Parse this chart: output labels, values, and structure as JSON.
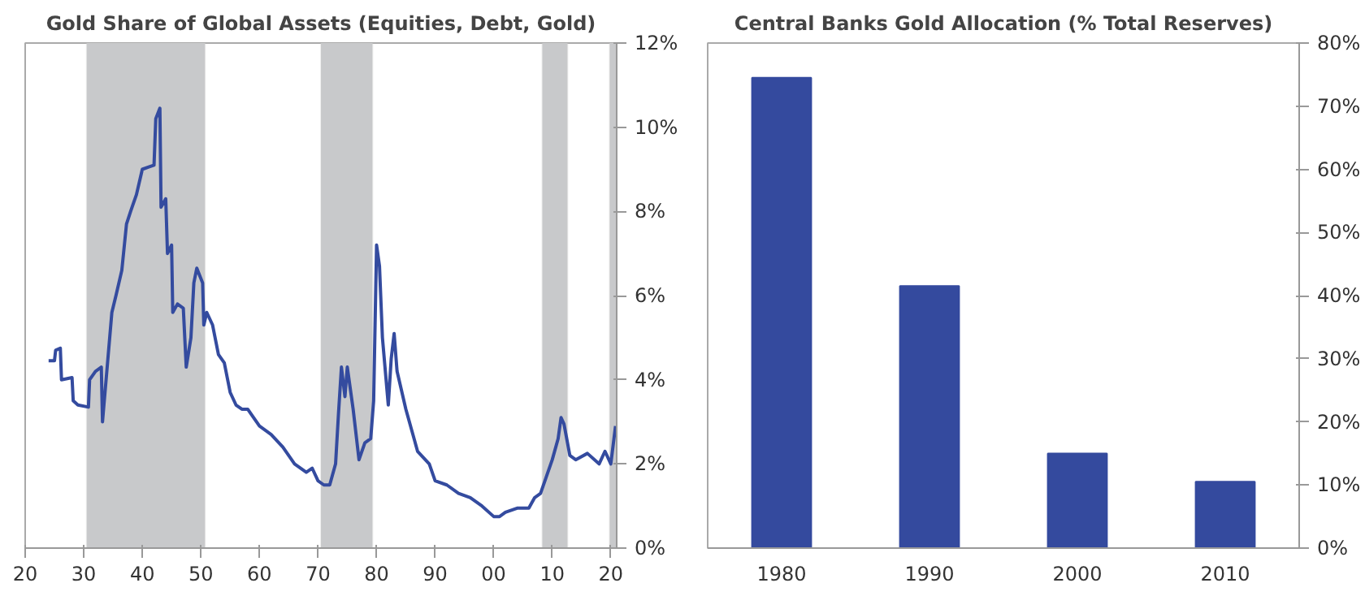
{
  "chart_data": [
    {
      "type": "line",
      "title": "Gold Share of Global Assets (Equities, Debt, Gold)",
      "x": [
        1924,
        1925,
        1925.2,
        1926,
        1926.2,
        1928,
        1928.2,
        1929,
        1930.8,
        1931,
        1932,
        1933,
        1933.2,
        1934,
        1934.8,
        1935.5,
        1936.5,
        1937.3,
        1938,
        1939,
        1940,
        1941,
        1942,
        1942.3,
        1943,
        1943.2,
        1944,
        1944.3,
        1945,
        1945.2,
        1946,
        1947,
        1947.5,
        1948.3,
        1948.8,
        1949.3,
        1950.3,
        1950.5,
        1951,
        1952,
        1953,
        1954,
        1955,
        1956,
        1957,
        1958,
        1960,
        1962,
        1964,
        1966,
        1968,
        1969,
        1970,
        1971,
        1972,
        1973,
        1973.5,
        1974,
        1974.6,
        1975,
        1976,
        1977,
        1978,
        1979,
        1979.5,
        1980,
        1980.5,
        1981,
        1982,
        1982.5,
        1983,
        1983.5,
        1985,
        1987,
        1989,
        1990,
        1992,
        1994,
        1996,
        1998,
        2000,
        2001,
        2002,
        2004,
        2006,
        2007,
        2008,
        2009,
        2010,
        2011,
        2011.5,
        2012,
        2013,
        2014,
        2016,
        2018,
        2019,
        2020,
        2020.8
      ],
      "series": [
        {
          "color": "#344b9f",
          "values": [
            4.45,
            4.45,
            4.7,
            4.75,
            4.0,
            4.05,
            3.5,
            3.4,
            3.35,
            4.0,
            4.2,
            4.3,
            3.0,
            4.3,
            5.6,
            6.0,
            6.6,
            7.7,
            8.0,
            8.4,
            9.0,
            9.05,
            9.1,
            10.2,
            10.45,
            8.1,
            8.3,
            7.0,
            7.2,
            5.6,
            5.8,
            5.7,
            4.3,
            5.0,
            6.3,
            6.65,
            6.3,
            5.3,
            5.6,
            5.3,
            4.6,
            4.4,
            3.7,
            3.4,
            3.3,
            3.3,
            2.9,
            2.7,
            2.4,
            2.0,
            1.8,
            1.9,
            1.6,
            1.5,
            1.5,
            2.0,
            3.2,
            4.3,
            3.6,
            4.3,
            3.3,
            2.1,
            2.5,
            2.6,
            3.5,
            7.2,
            6.7,
            5.0,
            3.4,
            4.5,
            5.1,
            4.2,
            3.3,
            2.3,
            2.0,
            1.6,
            1.5,
            1.3,
            1.2,
            1.0,
            0.75,
            0.75,
            0.85,
            0.95,
            0.95,
            1.2,
            1.3,
            1.7,
            2.1,
            2.6,
            3.1,
            2.95,
            2.2,
            2.1,
            2.25,
            2.0,
            2.3,
            2.0,
            2.9
          ]
        }
      ],
      "xlim": [
        1920,
        2021
      ],
      "ylim": [
        0,
        12
      ],
      "xticks": [
        {
          "value": 1920,
          "label": "20"
        },
        {
          "value": 1930,
          "label": "30"
        },
        {
          "value": 1940,
          "label": "40"
        },
        {
          "value": 1950,
          "label": "50"
        },
        {
          "value": 1960,
          "label": "60"
        },
        {
          "value": 1970,
          "label": "70"
        },
        {
          "value": 1980,
          "label": "80"
        },
        {
          "value": 1990,
          "label": "90"
        },
        {
          "value": 2000,
          "label": "00"
        },
        {
          "value": 2010,
          "label": "10"
        },
        {
          "value": 2020,
          "label": "20"
        }
      ],
      "yticks": [
        {
          "value": 0,
          "label": "0%"
        },
        {
          "value": 2,
          "label": "2%"
        },
        {
          "value": 4,
          "label": "4%"
        },
        {
          "value": 6,
          "label": "6%"
        },
        {
          "value": 8,
          "label": "8%"
        },
        {
          "value": 10,
          "label": "10%"
        },
        {
          "value": 12,
          "label": "12%"
        }
      ],
      "bands": [
        {
          "axis": "x",
          "from": 1930.5,
          "to": 1950.7,
          "color": "#c8c9cb"
        },
        {
          "axis": "x",
          "from": 1970.5,
          "to": 1979.3,
          "color": "#c8c9cb"
        },
        {
          "axis": "x",
          "from": 2008.3,
          "to": 2012.6,
          "color": "#c8c9cb"
        },
        {
          "axis": "x",
          "from": 2019.8,
          "to": 2021,
          "color": "#c8c9cb"
        }
      ],
      "grid": false
    },
    {
      "type": "bar",
      "title": "Central Banks Gold Allocation (% Total Reserves)",
      "categories": [
        "1980",
        "1990",
        "2000",
        "2010"
      ],
      "series": [
        {
          "color": "#344a9e",
          "values": [
            74.5,
            41.5,
            15,
            10.5
          ]
        }
      ],
      "ylim": [
        0,
        80
      ],
      "yticks": [
        {
          "value": 0,
          "label": "0%"
        },
        {
          "value": 10,
          "label": "10%"
        },
        {
          "value": 20,
          "label": "20%"
        },
        {
          "value": 30,
          "label": "30%"
        },
        {
          "value": 40,
          "label": "40%"
        },
        {
          "value": 50,
          "label": "50%"
        },
        {
          "value": 60,
          "label": "60%"
        },
        {
          "value": 70,
          "label": "70%"
        },
        {
          "value": 80,
          "label": "80%"
        }
      ],
      "grid": false
    }
  ]
}
